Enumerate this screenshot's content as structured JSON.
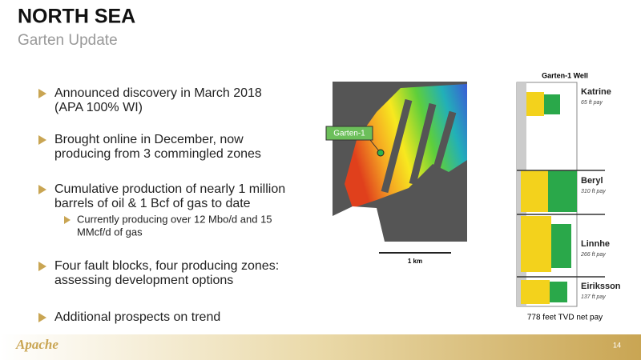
{
  "header": {
    "title": "NORTH SEA",
    "subtitle": "Garten Update"
  },
  "bullets": [
    {
      "lines": [
        "Announced discovery in March 2018",
        "(APA 100% WI)"
      ]
    },
    {
      "lines": [
        "Brought online in December, now",
        "producing from 3 commingled zones"
      ]
    },
    {
      "lines": [
        "Cumulative production of nearly 1 million",
        "barrels of oil & 1 Bcf of gas to date"
      ],
      "sub": {
        "lines": [
          "Currently producing over 12 Mbo/d and 15",
          "MMcf/d of gas"
        ]
      }
    },
    {
      "lines": [
        "Four fault blocks, four producing zones:",
        "assessing development options"
      ]
    },
    {
      "lines": [
        "Additional prospects on trend"
      ]
    }
  ],
  "map": {
    "well_label": "Garten-1",
    "scale": "1 km"
  },
  "well_log": {
    "title": "Garten-1 Well",
    "zones": [
      {
        "name": "Katrine",
        "pay": "65 ft pay"
      },
      {
        "name": "Beryl",
        "pay": "310 ft pay"
      },
      {
        "name": "Linnhe",
        "pay": "266 ft pay"
      },
      {
        "name": "Eiriksson",
        "pay": "137 ft pay"
      }
    ],
    "total": "778 feet TVD net pay"
  },
  "footer": {
    "logo": "Apache",
    "page": "14"
  }
}
